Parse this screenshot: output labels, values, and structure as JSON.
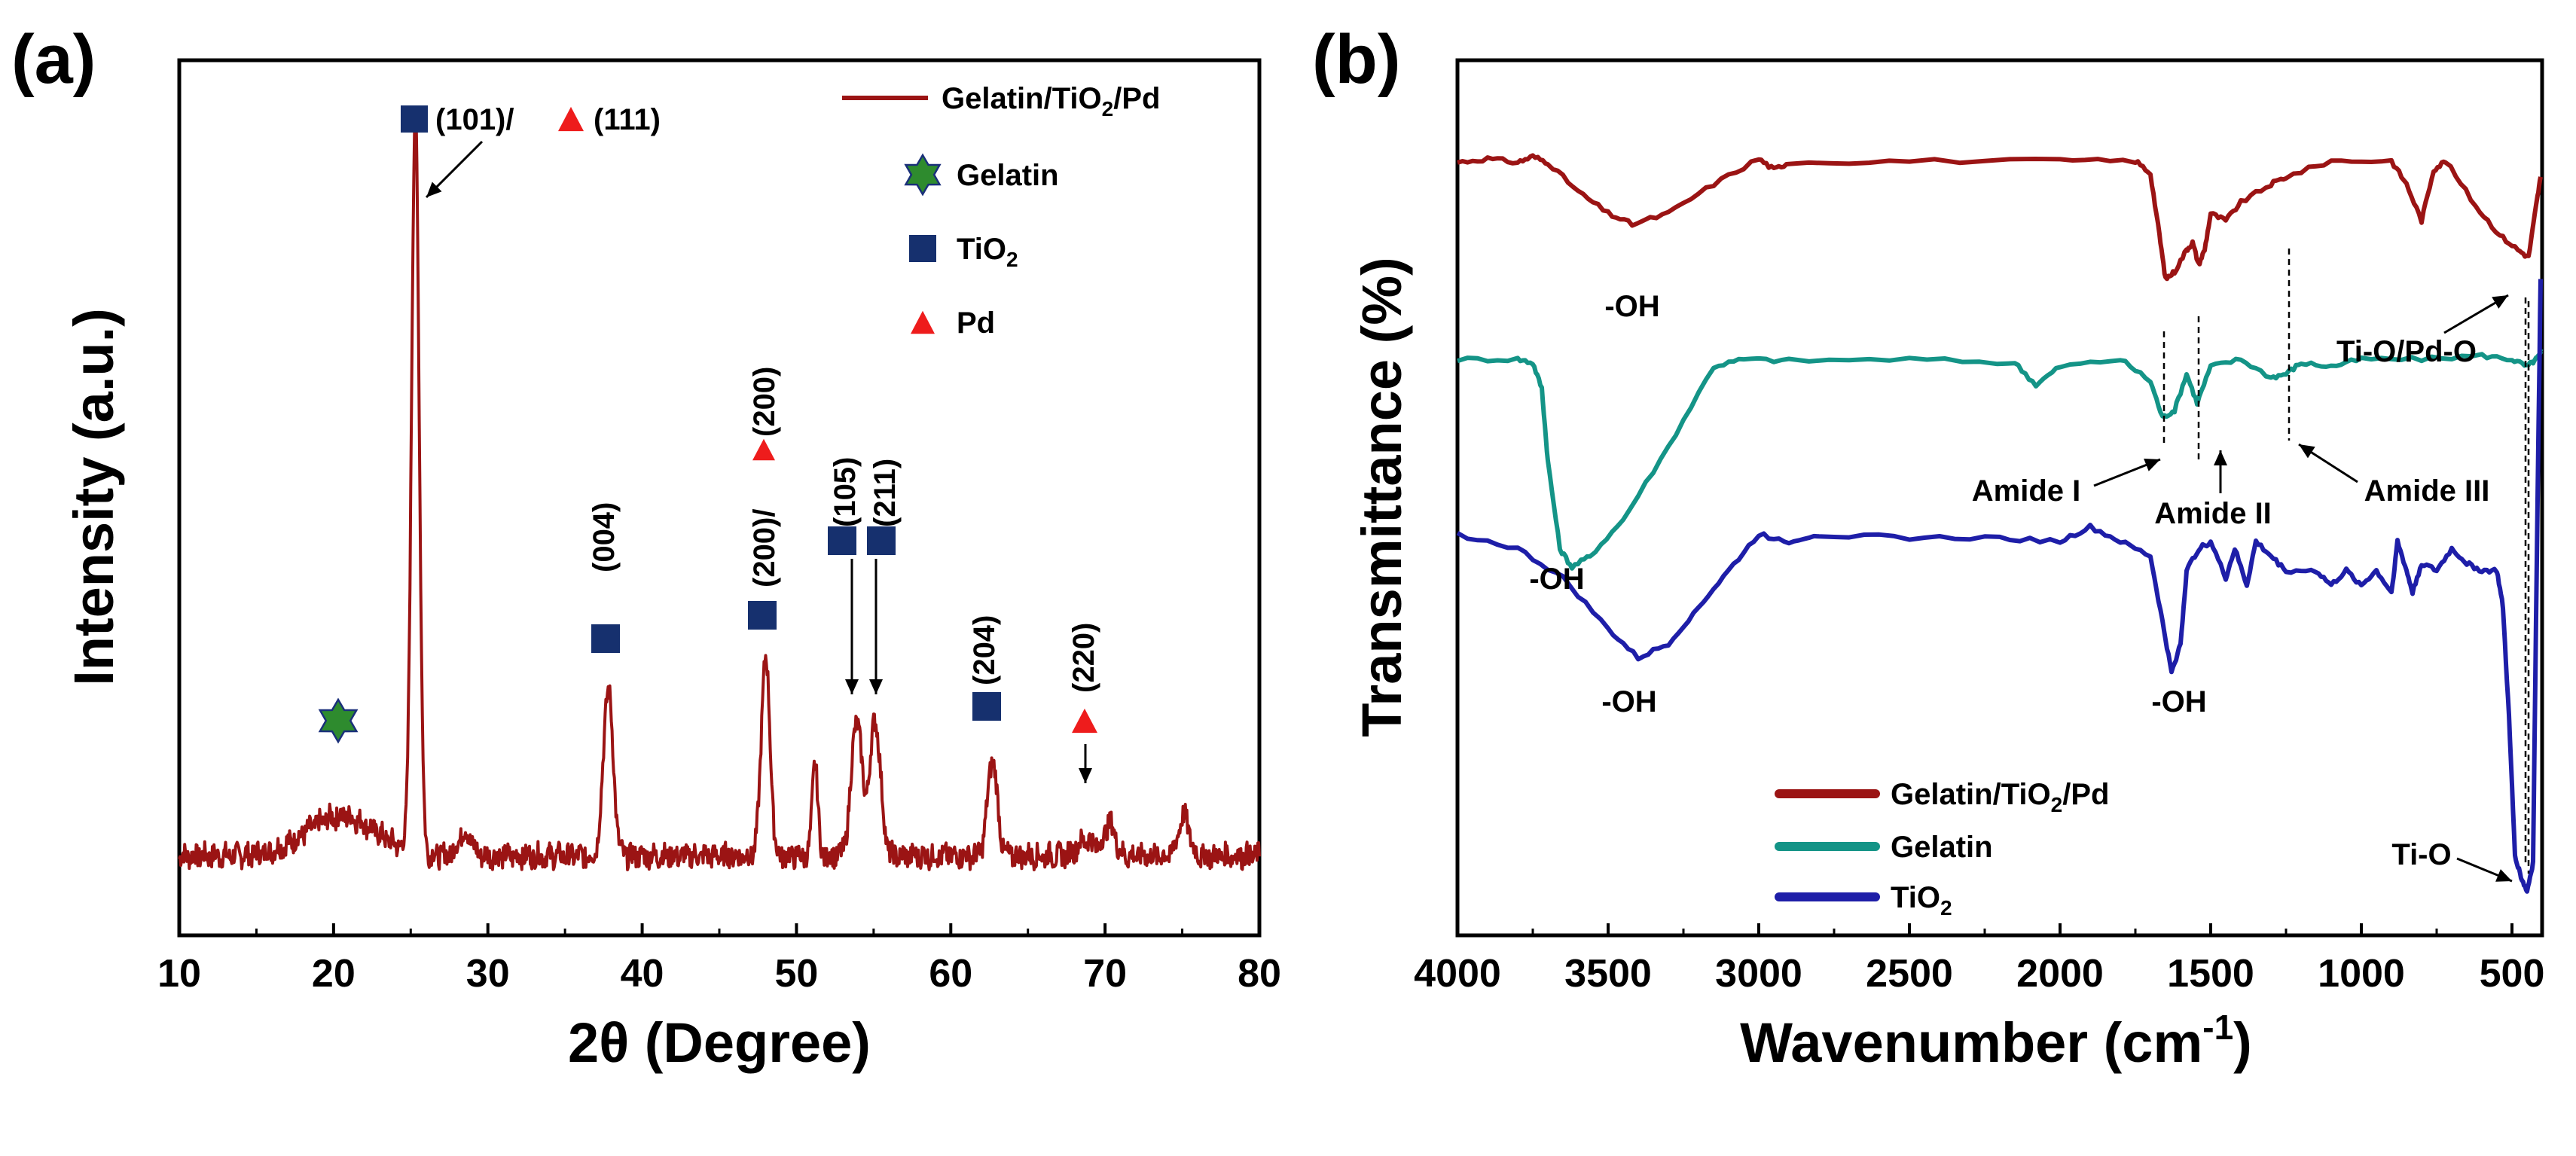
{
  "colors": {
    "gelatin_tio2_pd": "#9b1414",
    "gelatin": "#149487",
    "tio2": "#1e1ea8",
    "marker_tio2": "#16306e",
    "marker_pd": "#ee1c1c",
    "marker_gelatin": "#2e8b2e",
    "marker_gelatin_edge": "#1a2f7a"
  },
  "chart_data": [
    {
      "panel": "(a)",
      "type": "line",
      "title": "",
      "xlabel": "2θ (Degree)",
      "ylabel": "Intensity (a.u.)",
      "xlim": [
        10,
        80
      ],
      "ylim": [
        0,
        1.1
      ],
      "x_ticks": [
        "10",
        "20",
        "30",
        "40",
        "50",
        "60",
        "70",
        "80"
      ],
      "y_ticks": [],
      "grid": false,
      "legend_position": "top-right",
      "legend": [
        {
          "label_main": "Gelatin/TiO",
          "label_sub": "2",
          "label_tail": "/Pd",
          "kind": "line",
          "color_key": "gelatin_tio2_pd"
        },
        {
          "label_main": "Gelatin",
          "label_sub": "",
          "label_tail": "",
          "kind": "star"
        },
        {
          "label_main": "TiO",
          "label_sub": "2",
          "label_tail": "",
          "kind": "square"
        },
        {
          "label_main": "Pd",
          "label_sub": "",
          "label_tail": "",
          "kind": "triangle"
        }
      ],
      "series": [
        {
          "name": "Gelatin/TiO2/Pd",
          "baseline": 0.1,
          "peaks": [
            {
              "x": 20.5,
              "height": 0.05,
              "width": 3.2
            },
            {
              "x": 25.3,
              "height": 0.93,
              "width": 0.35
            },
            {
              "x": 28.5,
              "height": 0.03,
              "width": 0.6
            },
            {
              "x": 37.8,
              "height": 0.21,
              "width": 0.45
            },
            {
              "x": 48.0,
              "height": 0.25,
              "width": 0.4
            },
            {
              "x": 51.2,
              "height": 0.12,
              "width": 0.25
            },
            {
              "x": 53.9,
              "height": 0.17,
              "width": 0.5
            },
            {
              "x": 55.1,
              "height": 0.17,
              "width": 0.5
            },
            {
              "x": 62.7,
              "height": 0.12,
              "width": 0.45
            },
            {
              "x": 68.8,
              "height": 0.02,
              "width": 0.8
            },
            {
              "x": 70.3,
              "height": 0.04,
              "width": 0.5
            },
            {
              "x": 75.1,
              "height": 0.05,
              "width": 0.5
            }
          ]
        }
      ],
      "peak_labels": [
        {
          "x": 25.3,
          "text_main": "(101)/",
          "text_tail": "(111)",
          "markers": [
            "square",
            "triangle"
          ]
        },
        {
          "x": 37.8,
          "text_main": "(004)",
          "markers": [
            "square"
          ]
        },
        {
          "x": 48.0,
          "text_main": "(200)/",
          "text_tail": "(200)",
          "markers": [
            "square",
            "triangle"
          ]
        },
        {
          "x": 53.8,
          "text_main": "(105)",
          "markers": [
            "square"
          ]
        },
        {
          "x": 55.0,
          "text_main": "(211)",
          "markers": [
            "square"
          ]
        },
        {
          "x": 62.5,
          "text_main": "(204)",
          "markers": [
            "square"
          ]
        },
        {
          "x": 68.8,
          "text_main": "(220)",
          "markers": [
            "triangle"
          ]
        },
        {
          "x": 20.3,
          "text_main": "",
          "markers": [
            "star"
          ]
        }
      ]
    },
    {
      "panel": "(b)",
      "type": "line",
      "title": "",
      "xlabel_main": "Wavenumber (cm",
      "xlabel_sup": "-1",
      "xlabel_tail": ")",
      "ylabel": "Transmittance (%)",
      "xlim": [
        4000,
        400
      ],
      "x_ticks": [
        "4000",
        "3500",
        "3000",
        "2500",
        "2000",
        "1500",
        "1000",
        "500"
      ],
      "grid": false,
      "legend_position": "bottom-left",
      "legend": [
        {
          "label_main": "Gelatin/TiO",
          "label_sub": "2",
          "label_tail": "/Pd",
          "color_key": "gelatin_tio2_pd"
        },
        {
          "label_main": "Gelatin",
          "label_sub": "",
          "label_tail": "",
          "color_key": "gelatin"
        },
        {
          "label_main": "TiO",
          "label_sub": "2",
          "label_tail": "",
          "color_key": "tio2"
        }
      ],
      "series": [
        {
          "name": "Gelatin/TiO2/Pd",
          "color_key": "gelatin_tio2_pd",
          "points": [
            [
              4000,
              0.86
            ],
            [
              3900,
              0.865
            ],
            [
              3800,
              0.86
            ],
            [
              3750,
              0.868
            ],
            [
              3700,
              0.86
            ],
            [
              3600,
              0.82
            ],
            [
              3500,
              0.79
            ],
            [
              3420,
              0.775
            ],
            [
              3300,
              0.79
            ],
            [
              3150,
              0.83
            ],
            [
              3000,
              0.865
            ],
            [
              2950,
              0.85
            ],
            [
              2900,
              0.86
            ],
            [
              2500,
              0.862
            ],
            [
              2000,
              0.862
            ],
            [
              1750,
              0.862
            ],
            [
              1700,
              0.845
            ],
            [
              1670,
              0.76
            ],
            [
              1650,
              0.7
            ],
            [
              1620,
              0.71
            ],
            [
              1580,
              0.74
            ],
            [
              1560,
              0.75
            ],
            [
              1540,
              0.72
            ],
            [
              1520,
              0.74
            ],
            [
              1500,
              0.79
            ],
            [
              1450,
              0.78
            ],
            [
              1400,
              0.805
            ],
            [
              1300,
              0.83
            ],
            [
              1250,
              0.84
            ],
            [
              1100,
              0.862
            ],
            [
              900,
              0.862
            ],
            [
              850,
              0.83
            ],
            [
              800,
              0.78
            ],
            [
              760,
              0.85
            ],
            [
              720,
              0.862
            ],
            [
              620,
              0.8
            ],
            [
              540,
              0.76
            ],
            [
              480,
              0.74
            ],
            [
              445,
              0.73
            ],
            [
              420,
              0.8
            ],
            [
              405,
              0.84
            ]
          ]
        },
        {
          "name": "Gelatin",
          "color_key": "gelatin",
          "points": [
            [
              4000,
              0.59
            ],
            [
              3800,
              0.59
            ],
            [
              3750,
              0.585
            ],
            [
              3720,
              0.55
            ],
            [
              3700,
              0.45
            ],
            [
              3660,
              0.33
            ],
            [
              3620,
              0.305
            ],
            [
              3560,
              0.32
            ],
            [
              3450,
              0.37
            ],
            [
              3300,
              0.47
            ],
            [
              3150,
              0.58
            ],
            [
              3050,
              0.59
            ],
            [
              2900,
              0.588
            ],
            [
              2500,
              0.59
            ],
            [
              2150,
              0.585
            ],
            [
              2080,
              0.555
            ],
            [
              2000,
              0.58
            ],
            [
              1800,
              0.59
            ],
            [
              1700,
              0.56
            ],
            [
              1660,
              0.51
            ],
            [
              1620,
              0.52
            ],
            [
              1580,
              0.57
            ],
            [
              1545,
              0.53
            ],
            [
              1500,
              0.58
            ],
            [
              1400,
              0.59
            ],
            [
              1300,
              0.565
            ],
            [
              1250,
              0.57
            ],
            [
              1200,
              0.585
            ],
            [
              1100,
              0.58
            ],
            [
              1000,
              0.59
            ],
            [
              800,
              0.59
            ],
            [
              600,
              0.595
            ],
            [
              500,
              0.59
            ],
            [
              450,
              0.58
            ],
            [
              420,
              0.59
            ],
            [
              400,
              0.6
            ]
          ]
        },
        {
          "name": "TiO2",
          "color_key": "tio2",
          "points": [
            [
              4000,
              0.35
            ],
            [
              3800,
              0.33
            ],
            [
              3650,
              0.29
            ],
            [
              3500,
              0.22
            ],
            [
              3400,
              0.18
            ],
            [
              3300,
              0.2
            ],
            [
              3200,
              0.25
            ],
            [
              3100,
              0.3
            ],
            [
              3000,
              0.35
            ],
            [
              2900,
              0.34
            ],
            [
              2800,
              0.35
            ],
            [
              2500,
              0.345
            ],
            [
              2200,
              0.345
            ],
            [
              2000,
              0.34
            ],
            [
              1900,
              0.36
            ],
            [
              1800,
              0.34
            ],
            [
              1700,
              0.32
            ],
            [
              1660,
              0.23
            ],
            [
              1630,
              0.16
            ],
            [
              1600,
              0.2
            ],
            [
              1580,
              0.3
            ],
            [
              1540,
              0.33
            ],
            [
              1500,
              0.34
            ],
            [
              1450,
              0.29
            ],
            [
              1420,
              0.33
            ],
            [
              1380,
              0.28
            ],
            [
              1350,
              0.34
            ],
            [
              1300,
              0.32
            ],
            [
              1250,
              0.3
            ],
            [
              1150,
              0.3
            ],
            [
              1100,
              0.28
            ],
            [
              1050,
              0.3
            ],
            [
              1000,
              0.28
            ],
            [
              950,
              0.3
            ],
            [
              900,
              0.27
            ],
            [
              880,
              0.34
            ],
            [
              850,
              0.3
            ],
            [
              830,
              0.27
            ],
            [
              800,
              0.31
            ],
            [
              750,
              0.3
            ],
            [
              700,
              0.33
            ],
            [
              650,
              0.31
            ],
            [
              600,
              0.3
            ],
            [
              550,
              0.3
            ],
            [
              530,
              0.25
            ],
            [
              510,
              0.1
            ],
            [
              490,
              -0.09
            ],
            [
              470,
              -0.12
            ],
            [
              450,
              -0.14
            ],
            [
              430,
              -0.1
            ],
            [
              415,
              0.4
            ],
            [
              405,
              0.7
            ]
          ]
        }
      ],
      "annotations": [
        {
          "text": "-OH",
          "series": "Gelatin/TiO2/Pd",
          "x": 3420
        },
        {
          "text": "-OH",
          "series": "Gelatin",
          "x": 3620
        },
        {
          "text": "-OH",
          "series": "TiO2",
          "x": 3380
        },
        {
          "text": "-OH",
          "series": "TiO2",
          "x": 1630
        },
        {
          "text": "Ti-O/Pd-O",
          "series": "Gelatin/TiO2/Pd",
          "x": 450
        },
        {
          "text": "Amide I",
          "series": "Gelatin",
          "x": 1660
        },
        {
          "text": "Amide II",
          "series": "Gelatin",
          "x": 1545
        },
        {
          "text": "Amide III",
          "series": "Gelatin",
          "x": 1240
        },
        {
          "text": "Ti-O",
          "series": "TiO2",
          "x": 450
        }
      ]
    }
  ]
}
